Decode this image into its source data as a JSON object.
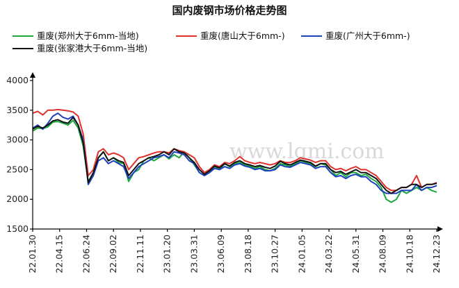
{
  "chart_data": {
    "type": "line",
    "title": "国内废钢市场价格走势图",
    "watermark": "www.lgmi.com",
    "xlabel": "",
    "ylabel": "",
    "ylim": [
      1500,
      4000
    ],
    "yticks": [
      1500,
      2000,
      2500,
      3000,
      3500,
      4000
    ],
    "legend_position": "top",
    "x_tick_labels": [
      "22.01.30",
      "22.04.15",
      "22.06.24",
      "22.09.02",
      "22.11.11",
      "23.01.20",
      "23.03.31",
      "23.06.09",
      "23.08.18",
      "23.10.27",
      "24.01.05",
      "24.03.22",
      "24.05.31",
      "24.08.09",
      "24.10.18",
      "24.12.23"
    ],
    "series": [
      {
        "name": "重废(郑州大于6mm-当地)",
        "color": "#1aa83c",
        "values": [
          3150,
          3200,
          3190,
          3220,
          3300,
          3310,
          3280,
          3250,
          3330,
          3200,
          2900,
          2300,
          2450,
          2700,
          2800,
          2650,
          2700,
          2620,
          2600,
          2300,
          2450,
          2500,
          2650,
          2700,
          2650,
          2700,
          2750,
          2680,
          2750,
          2700,
          2800,
          2700,
          2580,
          2450,
          2400,
          2450,
          2550,
          2500,
          2600,
          2550,
          2600,
          2620,
          2580,
          2560,
          2520,
          2550,
          2500,
          2480,
          2520,
          2600,
          2580,
          2550,
          2600,
          2650,
          2620,
          2600,
          2550,
          2600,
          2580,
          2500,
          2400,
          2450,
          2380,
          2450,
          2450,
          2400,
          2420,
          2350,
          2300,
          2200,
          2000,
          1950,
          2000,
          2150,
          2100,
          2150,
          2200,
          2150,
          2200,
          2150,
          2120
        ]
      },
      {
        "name": "重废(唐山大于6mm-)",
        "color": "#e0302b",
        "values": [
          3450,
          3480,
          3420,
          3500,
          3500,
          3510,
          3500,
          3490,
          3470,
          3400,
          3100,
          2400,
          2500,
          2800,
          2850,
          2750,
          2780,
          2750,
          2700,
          2500,
          2600,
          2700,
          2720,
          2750,
          2780,
          2800,
          2800,
          2780,
          2850,
          2820,
          2800,
          2750,
          2700,
          2550,
          2450,
          2500,
          2580,
          2550,
          2620,
          2600,
          2650,
          2720,
          2650,
          2620,
          2600,
          2620,
          2600,
          2580,
          2600,
          2650,
          2620,
          2620,
          2650,
          2700,
          2680,
          2660,
          2620,
          2650,
          2650,
          2550,
          2500,
          2520,
          2480,
          2520,
          2550,
          2500,
          2500,
          2450,
          2400,
          2300,
          2200,
          2150,
          2150,
          2200,
          2200,
          2250,
          2400,
          2200,
          2250,
          2250,
          2280
        ]
      },
      {
        "name": "重废(广州大于6mm-)",
        "color": "#1e3fbf",
        "values": [
          3200,
          3250,
          3180,
          3280,
          3400,
          3450,
          3380,
          3350,
          3400,
          3250,
          3000,
          2250,
          2400,
          2650,
          2700,
          2600,
          2650,
          2600,
          2550,
          2350,
          2450,
          2550,
          2600,
          2650,
          2700,
          2720,
          2750,
          2700,
          2800,
          2780,
          2750,
          2650,
          2600,
          2450,
          2400,
          2450,
          2520,
          2500,
          2550,
          2520,
          2580,
          2600,
          2560,
          2540,
          2500,
          2520,
          2480,
          2480,
          2500,
          2580,
          2550,
          2540,
          2580,
          2620,
          2600,
          2580,
          2520,
          2550,
          2550,
          2450,
          2380,
          2400,
          2350,
          2400,
          2420,
          2380,
          2380,
          2300,
          2250,
          2150,
          2100,
          2100,
          2100,
          2150,
          2150,
          2150,
          2250,
          2150,
          2200,
          2200,
          2230
        ]
      },
      {
        "name": "重废(张家港大于6mm-当地)",
        "color": "#111111",
        "values": [
          3180,
          3230,
          3200,
          3250,
          3320,
          3340,
          3300,
          3280,
          3380,
          3250,
          2950,
          2280,
          2450,
          2700,
          2800,
          2650,
          2700,
          2650,
          2620,
          2400,
          2500,
          2600,
          2650,
          2700,
          2720,
          2750,
          2800,
          2750,
          2850,
          2800,
          2780,
          2700,
          2620,
          2500,
          2420,
          2480,
          2560,
          2530,
          2600,
          2560,
          2620,
          2650,
          2600,
          2580,
          2550,
          2570,
          2540,
          2520,
          2560,
          2640,
          2600,
          2580,
          2620,
          2660,
          2640,
          2620,
          2560,
          2600,
          2600,
          2500,
          2450,
          2470,
          2420,
          2460,
          2500,
          2450,
          2450,
          2400,
          2350,
          2250,
          2150,
          2100,
          2150,
          2200,
          2200,
          2250,
          2250,
          2200,
          2250,
          2250,
          2270
        ]
      }
    ]
  }
}
